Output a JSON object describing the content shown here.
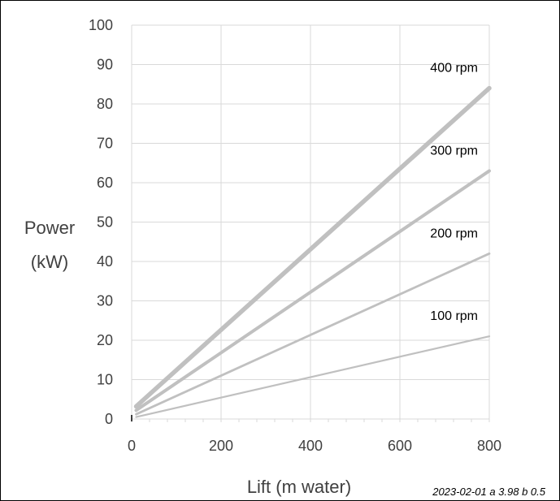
{
  "chart_data": {
    "type": "line",
    "title": "",
    "xlabel": "Lift (m water)",
    "ylabel_lines": [
      "Power",
      "(kW)"
    ],
    "xlim": [
      0,
      800
    ],
    "ylim": [
      0,
      100
    ],
    "x_ticks": [
      0,
      200,
      400,
      600,
      800
    ],
    "y_ticks": [
      0,
      10,
      20,
      30,
      40,
      50,
      60,
      70,
      80,
      90,
      100
    ],
    "grid": true,
    "legend": "inline labels at line ends",
    "series": [
      {
        "name": "100 rpm",
        "x": [
          10,
          800
        ],
        "y": [
          0.5,
          21
        ],
        "color": "#c0c0c0"
      },
      {
        "name": "200 rpm",
        "x": [
          10,
          800
        ],
        "y": [
          1.2,
          42
        ],
        "color": "#c0c0c0"
      },
      {
        "name": "300 rpm",
        "x": [
          10,
          800
        ],
        "y": [
          2.2,
          63
        ],
        "color": "#c0c0c0"
      },
      {
        "name": "400 rpm",
        "x": [
          10,
          800
        ],
        "y": [
          3.2,
          84
        ],
        "color": "#c0c0c0"
      }
    ],
    "footnote": "2023-02-01  a 3.98  b 0.5"
  }
}
